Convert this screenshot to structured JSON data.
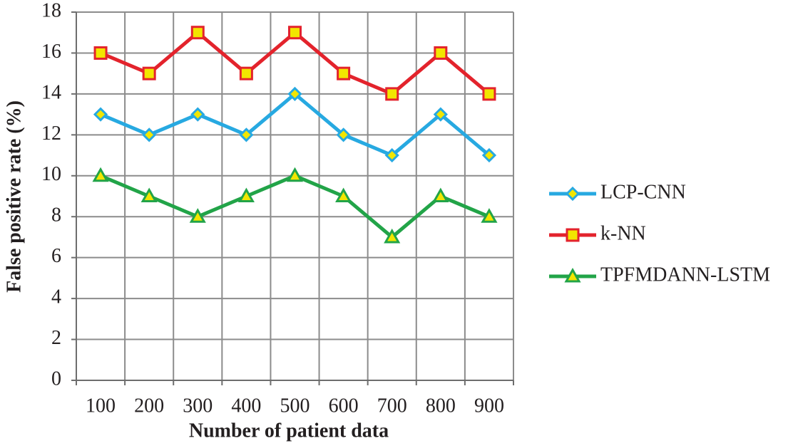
{
  "chart_data": {
    "type": "line",
    "x_label": "Number of patient data",
    "y_label": "False positive rate (%)",
    "categories": [
      "100",
      "200",
      "300",
      "400",
      "500",
      "600",
      "700",
      "800",
      "900"
    ],
    "series": [
      {
        "name": "LCP-CNN",
        "color": "#27a9e1",
        "marker": "diamond",
        "marker_color": "#f2e600",
        "values": [
          13,
          12,
          13,
          12,
          14,
          12,
          11,
          13,
          11
        ]
      },
      {
        "name": "k-NN",
        "color": "#e3232c",
        "marker": "square",
        "marker_color": "#f2e600",
        "values": [
          16,
          15,
          17,
          15,
          17,
          15,
          14,
          16,
          14
        ]
      },
      {
        "name": "TPFMDANN-LSTM",
        "color": "#22a448",
        "marker": "triangle",
        "marker_color": "#f2e600",
        "values": [
          10,
          9,
          8,
          9,
          10,
          9,
          7,
          9,
          8
        ]
      }
    ],
    "ylim": [
      0,
      18
    ],
    "yticks": [
      0,
      2,
      4,
      6,
      8,
      10,
      12,
      14,
      16,
      18
    ],
    "grid": true,
    "legend": "right"
  }
}
